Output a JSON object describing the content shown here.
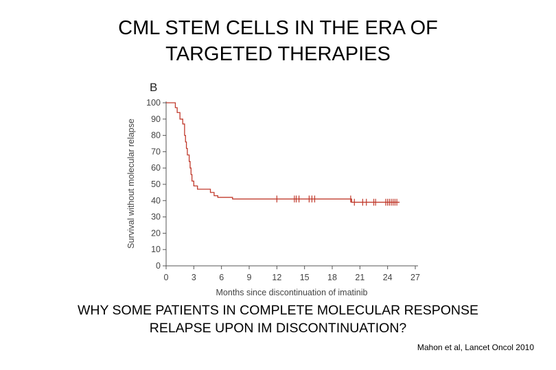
{
  "slide": {
    "title_line1": "CML STEM CELLS IN THE ERA OF",
    "title_line2": "TARGETED THERAPIES",
    "question_line1": "WHY SOME PATIENTS IN COMPLETE MOLECULAR RESPONSE",
    "question_line2": "RELAPSE UPON IM DISCONTINUATION?",
    "citation": "Mahon et al, Lancet Oncol 2010"
  },
  "chart_data": {
    "type": "line",
    "panel_label": "B",
    "title": "",
    "xlabel": "Months since discontinuation of imatinib",
    "ylabel": "Survival without molecular relapse",
    "xlim": [
      0,
      27
    ],
    "ylim": [
      0,
      100
    ],
    "xticks": [
      0,
      3,
      6,
      9,
      12,
      15,
      18,
      21,
      24,
      27
    ],
    "yticks": [
      0,
      10,
      20,
      30,
      40,
      50,
      60,
      70,
      80,
      90,
      100
    ],
    "line_color": "#c0392b",
    "series": [
      {
        "name": "Survival without molecular relapse",
        "step": true,
        "x": [
          0,
          1.0,
          1.2,
          1.5,
          1.8,
          2.0,
          2.1,
          2.2,
          2.3,
          2.5,
          2.6,
          2.7,
          2.8,
          3.0,
          3.4,
          4.8,
          5.2,
          5.6,
          7.2,
          20.1,
          25.3
        ],
        "y": [
          100,
          97,
          94,
          90,
          87,
          80,
          76,
          72,
          68,
          64,
          60,
          56,
          52,
          49,
          47,
          45,
          43,
          42,
          41,
          39,
          39
        ]
      }
    ],
    "censor_marks": [
      12,
      13.9,
      14.1,
      14.4,
      15.5,
      15.8,
      16.1,
      20.0,
      20.4,
      21.3,
      21.7,
      22.5,
      22.7,
      23.8,
      24.0,
      24.2,
      24.4,
      24.6,
      24.8,
      25.0
    ]
  }
}
